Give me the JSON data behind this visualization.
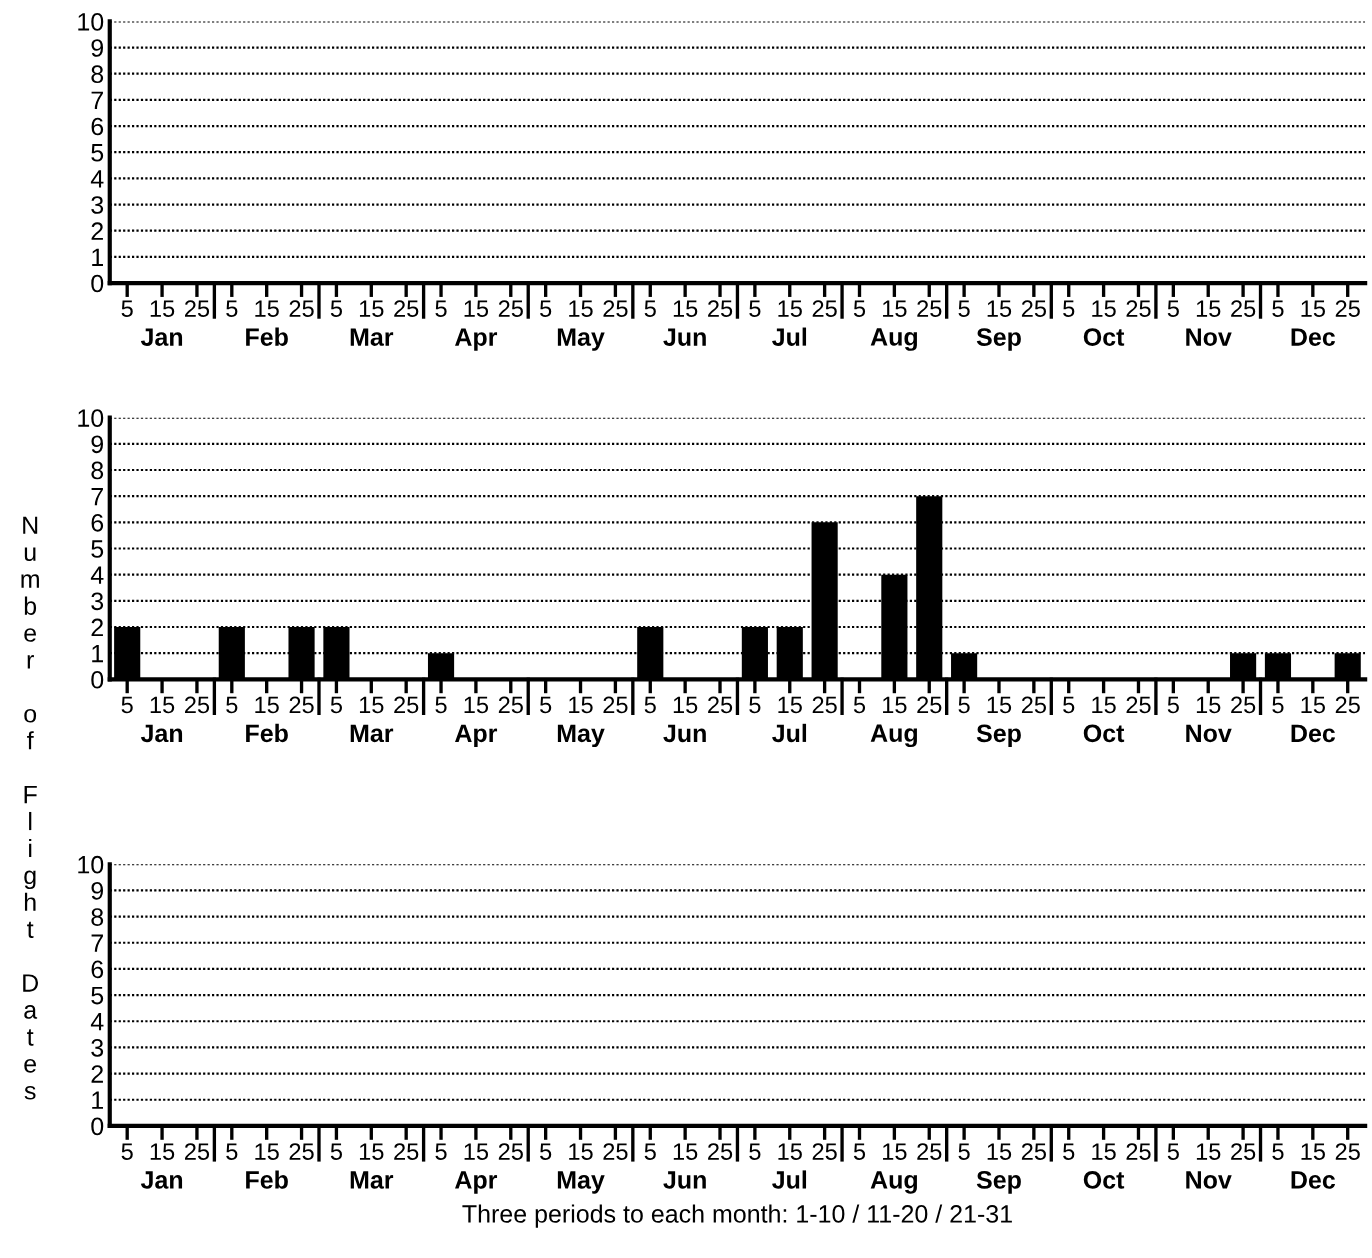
{
  "chart_data": [
    {
      "type": "bar",
      "ylabel": "Number of Flight Dates",
      "categories": [
        "5",
        "15",
        "25",
        "5",
        "15",
        "25",
        "5",
        "15",
        "25",
        "5",
        "15",
        "25",
        "5",
        "15",
        "25",
        "5",
        "15",
        "25",
        "5",
        "15",
        "25",
        "5",
        "15",
        "25",
        "5",
        "15",
        "25",
        "5",
        "15",
        "25",
        "5",
        "15",
        "25",
        "5",
        "15",
        "25"
      ],
      "values": [
        0,
        0,
        0,
        0,
        0,
        0,
        0,
        0,
        0,
        0,
        0,
        0,
        0,
        0,
        0,
        0,
        0,
        0,
        0,
        0,
        0,
        0,
        0,
        0,
        0,
        0,
        0,
        0,
        0,
        0,
        0,
        0,
        0,
        0,
        0,
        0
      ],
      "color": "#000000",
      "ylim": [
        0,
        10
      ],
      "yticks": [
        0,
        1,
        2,
        3,
        4,
        5,
        6,
        7,
        8,
        9,
        10
      ],
      "grid": "y",
      "annotations": [
        "Jan",
        "Feb",
        "Mar",
        "Apr",
        "May",
        "Jun",
        "Jul",
        "Aug",
        "Sep",
        "Oct",
        "Nov",
        "Dec"
      ]
    },
    {
      "type": "bar",
      "categories": [
        "5",
        "15",
        "25",
        "5",
        "15",
        "25",
        "5",
        "15",
        "25",
        "5",
        "15",
        "25",
        "5",
        "15",
        "25",
        "5",
        "15",
        "25",
        "5",
        "15",
        "25",
        "5",
        "15",
        "25",
        "5",
        "15",
        "25",
        "5",
        "15",
        "25",
        "5",
        "15",
        "25",
        "5",
        "15",
        "25"
      ],
      "values": [
        2,
        0,
        0,
        2,
        0,
        2,
        2,
        0,
        0,
        1,
        0,
        0,
        0,
        0,
        0,
        2,
        0,
        0,
        2,
        2,
        6,
        0,
        4,
        7,
        1,
        0,
        0,
        0,
        0,
        0,
        0,
        0,
        1,
        1,
        0,
        1
      ],
      "color": "#000000",
      "ylim": [
        0,
        10
      ],
      "yticks": [
        0,
        1,
        2,
        3,
        4,
        5,
        6,
        7,
        8,
        9,
        10
      ],
      "grid": "y",
      "annotations": [
        "Jan",
        "Feb",
        "Mar",
        "Apr",
        "May",
        "Jun",
        "Jul",
        "Aug",
        "Sep",
        "Oct",
        "Nov",
        "Dec"
      ]
    },
    {
      "type": "bar",
      "xlabel": "Three periods to each month: 1-10 / 11-20 / 21-31",
      "categories": [
        "5",
        "15",
        "25",
        "5",
        "15",
        "25",
        "5",
        "15",
        "25",
        "5",
        "15",
        "25",
        "5",
        "15",
        "25",
        "5",
        "15",
        "25",
        "5",
        "15",
        "25",
        "5",
        "15",
        "25",
        "5",
        "15",
        "25",
        "5",
        "15",
        "25",
        "5",
        "15",
        "25",
        "5",
        "15",
        "25"
      ],
      "values": [
        0,
        0,
        0,
        0,
        0,
        0,
        0,
        0,
        0,
        0,
        0,
        0,
        0,
        0,
        0,
        0,
        0,
        0,
        0,
        0,
        0,
        0,
        0,
        0,
        0,
        0,
        0,
        0,
        0,
        0,
        0,
        0,
        0,
        0,
        0,
        0
      ],
      "color": "#000000",
      "ylim": [
        0,
        10
      ],
      "yticks": [
        0,
        1,
        2,
        3,
        4,
        5,
        6,
        7,
        8,
        9,
        10
      ],
      "grid": "y",
      "annotations": [
        "Jan",
        "Feb",
        "Mar",
        "Apr",
        "May",
        "Jun",
        "Jul",
        "Aug",
        "Sep",
        "Oct",
        "Nov",
        "Dec"
      ]
    }
  ]
}
